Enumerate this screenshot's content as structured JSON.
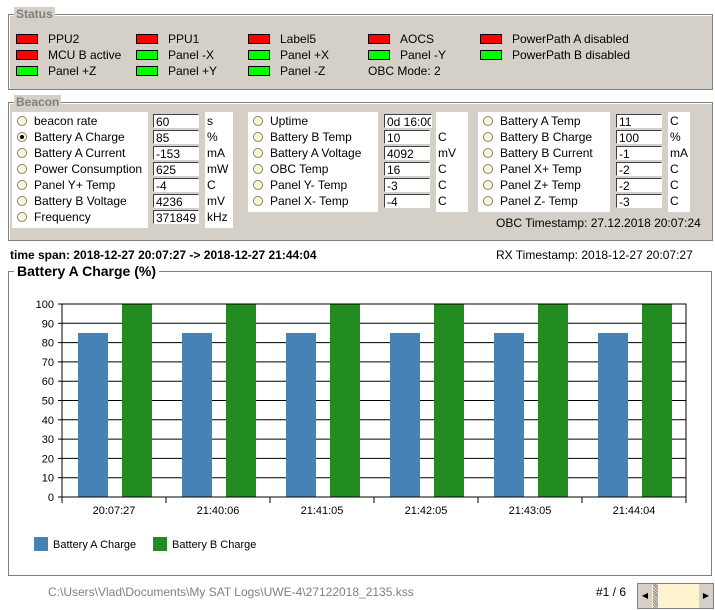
{
  "status": {
    "title": "Status",
    "colors": {
      "red": "#ff0000",
      "green": "#00ff00"
    },
    "columns": [
      [
        {
          "label": "PPU2",
          "state": "red"
        },
        {
          "label": "MCU B active",
          "state": "red"
        },
        {
          "label": "Panel +Z",
          "state": "green"
        }
      ],
      [
        {
          "label": "PPU1",
          "state": "red"
        },
        {
          "label": "Panel -X",
          "state": "green"
        },
        {
          "label": "Panel +Y",
          "state": "green"
        }
      ],
      [
        {
          "label": "Label5",
          "state": "red"
        },
        {
          "label": "Panel +X",
          "state": "green"
        },
        {
          "label": "Panel -Z",
          "state": "green"
        }
      ],
      [
        {
          "label": "AOCS",
          "state": "red"
        },
        {
          "label": "Panel -Y",
          "state": "green"
        }
      ],
      [
        {
          "label": "PowerPath A disabled",
          "state": "red"
        },
        {
          "label": "PowerPath B disabled",
          "state": "green"
        }
      ]
    ],
    "obc_mode": "OBC Mode: 2"
  },
  "beacon": {
    "title": "Beacon",
    "columns": [
      [
        {
          "label": "beacon rate",
          "value": "60",
          "unit": "s"
        },
        {
          "label": "Battery A Charge",
          "value": "85",
          "unit": "%",
          "selected": true
        },
        {
          "label": "Battery A Current",
          "value": "-153",
          "unit": "mA"
        },
        {
          "label": "Power Consumption",
          "value": "625",
          "unit": "mW"
        },
        {
          "label": "Panel Y+ Temp",
          "value": "-4",
          "unit": "C"
        },
        {
          "label": "Battery B Voltage",
          "value": "4236",
          "unit": "mV"
        },
        {
          "label": "Frequency",
          "value": "371849",
          "unit": "kHz"
        }
      ],
      [
        {
          "label": "Uptime",
          "value": "0d 16:00",
          "unit": ""
        },
        {
          "label": "Battery B Temp",
          "value": "10",
          "unit": "C"
        },
        {
          "label": "Battery A Voltage",
          "value": "4092",
          "unit": "mV"
        },
        {
          "label": "OBC Temp",
          "value": "16",
          "unit": "C"
        },
        {
          "label": "Panel Y- Temp",
          "value": "-3",
          "unit": "C"
        },
        {
          "label": "Panel X- Temp",
          "value": "-4",
          "unit": "C"
        }
      ],
      [
        {
          "label": "Battery A Temp",
          "value": "11",
          "unit": "C"
        },
        {
          "label": "Battery B Charge",
          "value": "100",
          "unit": "%"
        },
        {
          "label": "Battery B Current",
          "value": "-1",
          "unit": "mA"
        },
        {
          "label": "Panel X+ Temp",
          "value": "-2",
          "unit": "C"
        },
        {
          "label": "Panel Z+ Temp",
          "value": "-2",
          "unit": "C"
        },
        {
          "label": "Panel Z- Temp",
          "value": "-3",
          "unit": "C"
        }
      ]
    ],
    "obc_timestamp": "OBC Timestamp: 27.12.2018 20:07:24"
  },
  "time_span": "time span: 2018-12-27 20:07:27 -> 2018-12-27 21:44:04",
  "rx_timestamp": "RX Timestamp: 2018-12-27 20:07:27",
  "chart_data": {
    "type": "bar",
    "title": "Battery A Charge (%)",
    "categories": [
      "20:07:27",
      "21:40:06",
      "21:41:05",
      "21:42:05",
      "21:43:05",
      "21:44:04"
    ],
    "series": [
      {
        "name": "Battery A Charge",
        "color": "#4682b4",
        "values": [
          85,
          85,
          85,
          85,
          85,
          85
        ]
      },
      {
        "name": "Battery B Charge",
        "color": "#228b22",
        "values": [
          100,
          100,
          100,
          100,
          100,
          100
        ]
      }
    ],
    "ylim": [
      0,
      100
    ],
    "yticks": [
      0,
      10,
      20,
      30,
      40,
      50,
      60,
      70,
      80,
      90,
      100
    ],
    "grid": true,
    "legend": "bottom-left"
  },
  "footer": {
    "path": "C:\\Users\\Vlad\\Documents\\My SAT Logs\\UWE-4\\27122018_2135.kss",
    "page": "#1 / 6"
  }
}
